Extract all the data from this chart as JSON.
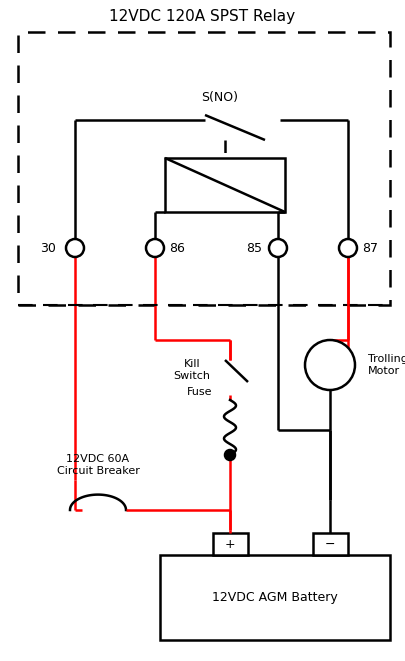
{
  "title": "12VDC 120A SPST Relay",
  "battery_label": "12VDC AGM Battery",
  "circuit_breaker_label": "12VDC 60A\nCircuit Breaker",
  "kill_switch_label": "Kill\nSwitch",
  "fuse_label": "Fuse",
  "trolling_motor_label": "Trolling\nMotor",
  "sno_label": "S(NO)",
  "bg_color": "#ffffff",
  "line_color": "#000000",
  "red_color": "#ff0000"
}
